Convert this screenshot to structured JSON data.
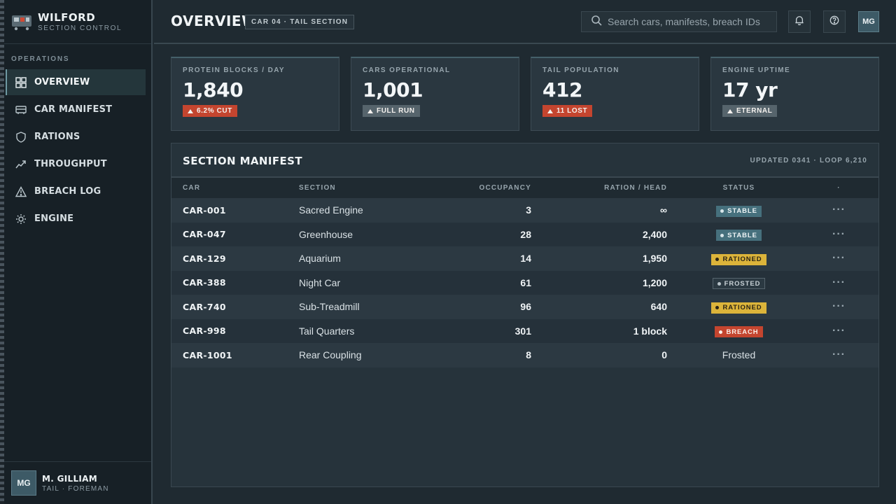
{
  "brand": {
    "name": "WILFORD",
    "subtitle": "SECTION CONTROL"
  },
  "sidebar": {
    "section_label": "OPERATIONS",
    "items": [
      {
        "label": "OVERVIEW",
        "icon": "grid-icon",
        "active": true
      },
      {
        "label": "CAR MANIFEST",
        "icon": "train-car-icon"
      },
      {
        "label": "RATIONS",
        "icon": "shield-icon"
      },
      {
        "label": "THROUGHPUT",
        "icon": "trend-icon"
      },
      {
        "label": "BREACH LOG",
        "icon": "warning-icon"
      },
      {
        "label": "ENGINE",
        "icon": "gear-icon"
      }
    ]
  },
  "user": {
    "initials": "MG",
    "name": "M. GILLIAM",
    "role": "TAIL · FOREMAN"
  },
  "header": {
    "title": "OVERVIEW",
    "chip": "CAR 04 · TAIL SECTION",
    "search_placeholder": "Search cars, manifests, breach IDs",
    "avatar": "MG"
  },
  "kpis": [
    {
      "label": "PROTEIN BLOCKS / DAY",
      "value": "1,840",
      "badge": "6.2% CUT",
      "tone": "red"
    },
    {
      "label": "CARS OPERATIONAL",
      "value": "1,001",
      "badge": "FULL RUN",
      "tone": "grey"
    },
    {
      "label": "TAIL POPULATION",
      "value": "412",
      "badge": "11 LOST",
      "tone": "red"
    },
    {
      "label": "ENGINE UPTIME",
      "value": "17 yr",
      "badge": "ETERNAL",
      "tone": "grey"
    }
  ],
  "manifest": {
    "title": "SECTION MANIFEST",
    "meta": "UPDATED 0341 · LOOP 6,210",
    "columns": [
      "CAR",
      "SECTION",
      "OCCUPANCY",
      "RATION / HEAD",
      "STATUS",
      "·"
    ],
    "rows": [
      {
        "car": "CAR-001",
        "section": "Sacred Engine",
        "occupancy": "3",
        "ration": "∞",
        "status": "STABLE",
        "status_kind": "stable"
      },
      {
        "car": "CAR-047",
        "section": "Greenhouse",
        "occupancy": "28",
        "ration": "2,400",
        "status": "STABLE",
        "status_kind": "stable"
      },
      {
        "car": "CAR-129",
        "section": "Aquarium",
        "occupancy": "14",
        "ration": "1,950",
        "status": "RATIONED",
        "status_kind": "rationed"
      },
      {
        "car": "CAR-388",
        "section": "Night Car",
        "occupancy": "61",
        "ration": "1,200",
        "status": "FROSTED",
        "status_kind": "frosted"
      },
      {
        "car": "CAR-740",
        "section": "Sub-Treadmill",
        "occupancy": "96",
        "ration": "640",
        "status": "RATIONED",
        "status_kind": "rationed"
      },
      {
        "car": "CAR-998",
        "section": "Tail Quarters",
        "occupancy": "301",
        "ration": "1 block",
        "status": "BREACH",
        "status_kind": "breach"
      },
      {
        "car": "CAR-1001",
        "section": "Rear Coupling",
        "occupancy": "8",
        "ration": "0",
        "status": "Frosted",
        "status_kind": "plain"
      }
    ],
    "row_action": "···"
  }
}
